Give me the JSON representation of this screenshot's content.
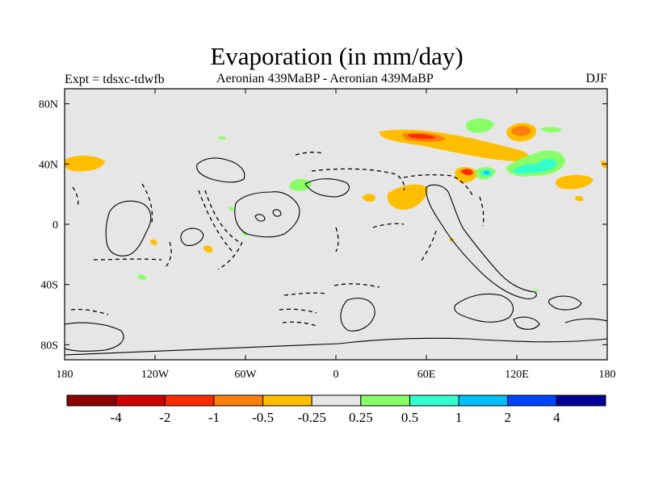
{
  "title": "Evaporation (in mm/day)",
  "left_label": "Expt = tdsxc-tdwfb",
  "center_label": "Aeronian 439MaBP - Aeronian 439MaBP",
  "right_label": "DJF",
  "map": {
    "projection": "cylindrical equidistant",
    "lon_range": [
      -180,
      180
    ],
    "lat_range": [
      -90,
      90
    ],
    "background_color": "#e6e6e6",
    "lon_ticks": [
      {
        "value": -180,
        "label": "180"
      },
      {
        "value": -120,
        "label": "120W"
      },
      {
        "value": -60,
        "label": "60W"
      },
      {
        "value": 0,
        "label": "0"
      },
      {
        "value": 60,
        "label": "60E"
      },
      {
        "value": 120,
        "label": "120E"
      },
      {
        "value": 180,
        "label": "180"
      }
    ],
    "lat_ticks": [
      {
        "value": 80,
        "label": "80N"
      },
      {
        "value": 40,
        "label": "40N"
      },
      {
        "value": 0,
        "label": "0"
      },
      {
        "value": -40,
        "label": "40S"
      },
      {
        "value": -80,
        "label": "80S"
      }
    ]
  },
  "colorbar": {
    "colors": [
      "#8b0000",
      "#cc0000",
      "#ff2a00",
      "#ff7f0e",
      "#ffbf00",
      "#e6e6e6",
      "#88ff66",
      "#33ffcc",
      "#00bfff",
      "#0044ff",
      "#000099"
    ],
    "labels": [
      "-4",
      "-2",
      "-1",
      "-0.5",
      "-0.25",
      "0.25",
      "0.5",
      "1",
      "2",
      "4"
    ]
  }
}
